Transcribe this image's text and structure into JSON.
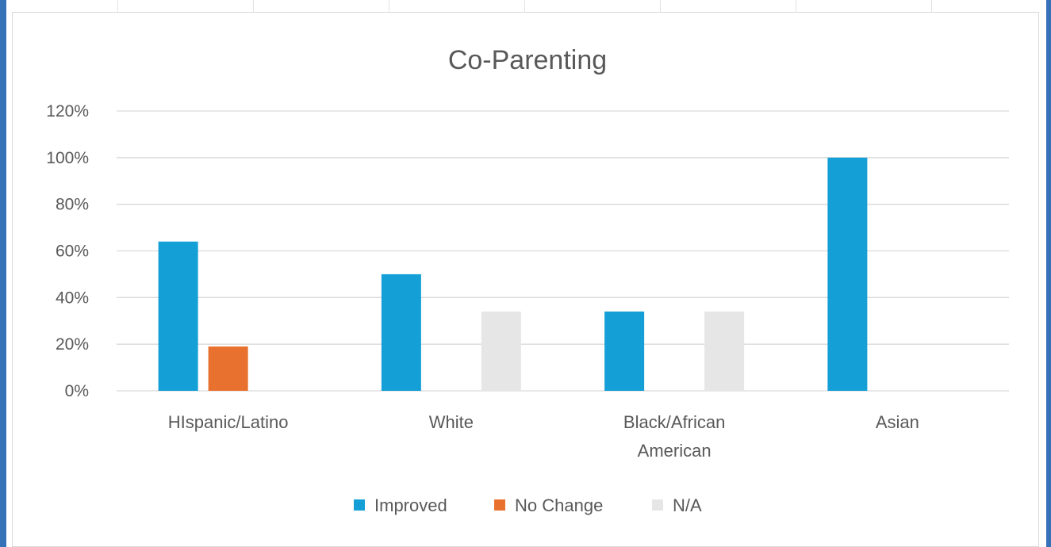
{
  "chart_data": {
    "type": "bar",
    "title": "Co-Parenting",
    "categories": [
      [
        "HIspanic/Latino"
      ],
      [
        "White"
      ],
      [
        "Black/African",
        "American"
      ],
      [
        "Asian"
      ]
    ],
    "series": [
      {
        "name": "Improved",
        "color": "#159fd7",
        "values": [
          64,
          50,
          34,
          100
        ]
      },
      {
        "name": "No Change",
        "color": "#e8712f",
        "values": [
          19,
          0,
          0,
          0
        ]
      },
      {
        "name": "N/A",
        "color": "#e6e6e6",
        "values": [
          0,
          34,
          34,
          0
        ]
      }
    ],
    "y_ticks": [
      "0%",
      "20%",
      "40%",
      "60%",
      "80%",
      "100%",
      "120%"
    ],
    "ylim": [
      0,
      120
    ],
    "grid": true,
    "legend_position": "bottom"
  }
}
